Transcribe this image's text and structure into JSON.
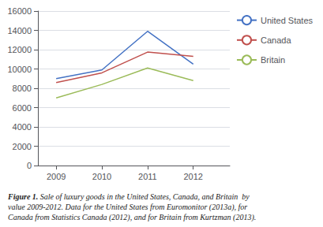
{
  "chart_data": {
    "type": "line",
    "x": [
      2009,
      2010,
      2011,
      2012
    ],
    "series": [
      {
        "name": "United States",
        "color": "#4472c4",
        "values": [
          9000,
          9900,
          13900,
          10500
        ]
      },
      {
        "name": "Canada",
        "color": "#c0504d",
        "values": [
          8600,
          9600,
          11750,
          11300
        ]
      },
      {
        "name": "Britain",
        "color": "#9bbb59",
        "values": [
          7000,
          8400,
          10100,
          8800
        ]
      }
    ],
    "xlim": [
      2008.6,
      2012.8
    ],
    "xticks": [
      2009,
      2010,
      2011,
      2012
    ],
    "ylim": [
      0,
      16000
    ],
    "yticks": [
      0,
      2000,
      4000,
      6000,
      8000,
      10000,
      12000,
      14000,
      16000
    ],
    "grid": true,
    "legend": "right",
    "caption": [
      "Figure 1.",
      "Sale of luxury goods in the United States, Canada, and Britain  by value 2009-2012. Data for the United States from Euromonitor (2013a), for Canada from Statistics Canada (2012), and for Britain from Kurtzman (2013)."
    ]
  }
}
